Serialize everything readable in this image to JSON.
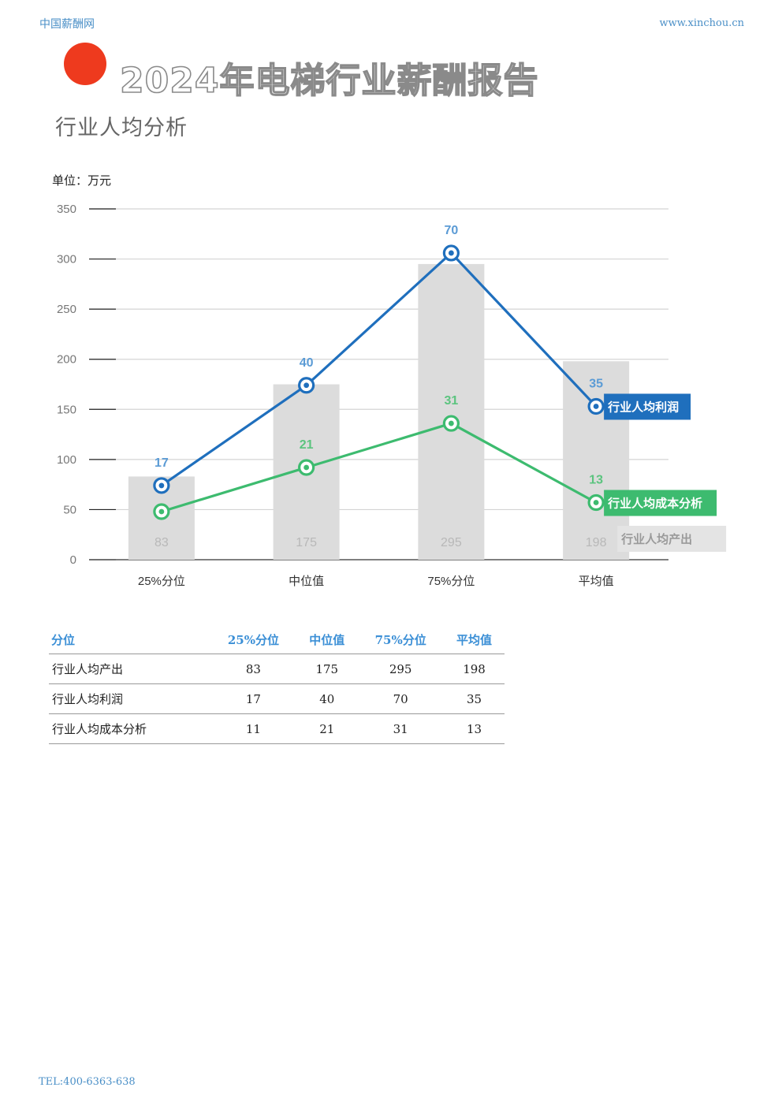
{
  "header": {
    "site_name": "中国薪酬网",
    "url": "www.xinchou.cn"
  },
  "report_title": "2024年电梯行业薪酬报告",
  "section_title": "行业人均分析",
  "unit_label": "单位：万元",
  "chart_data": {
    "type": "bar",
    "categories": [
      "25%分位",
      "中位值",
      "75%分位",
      "平均值"
    ],
    "ylim": [
      0,
      350
    ],
    "yticks": [
      0,
      50,
      100,
      150,
      200,
      250,
      300,
      350
    ],
    "grid": true,
    "legend": "right, inline labels at series ends",
    "series": [
      {
        "name": "行业人均产出",
        "type": "bar",
        "color": "#dcdcdc",
        "label_color": "#b8b8b8",
        "values": [
          83,
          175,
          295,
          198
        ],
        "labels": [
          "83",
          "175",
          "295",
          "198"
        ]
      },
      {
        "name": "行业人均利润",
        "type": "line",
        "color": "#1f6fbd",
        "label_color": "#5b9bd5",
        "values": [
          74,
          174,
          306,
          153
        ],
        "labels": [
          "17",
          "40",
          "70",
          "35"
        ]
      },
      {
        "name": "行业人均成本分析",
        "type": "line",
        "color": "#3dbb6f",
        "label_color": "#5cc47f",
        "values": [
          48,
          92,
          136,
          57
        ],
        "labels": [
          "",
          "21",
          "31",
          "13"
        ]
      }
    ]
  },
  "table": {
    "headers": [
      "分位",
      "25%分位",
      "中位值",
      "75%分位",
      "平均值"
    ],
    "rows": [
      [
        "行业人均产出",
        "83",
        "175",
        "295",
        "198"
      ],
      [
        "行业人均利润",
        "17",
        "40",
        "70",
        "35"
      ],
      [
        "行业人均成本分析",
        "11",
        "21",
        "31",
        "13"
      ]
    ]
  },
  "footer": {
    "tel": "TEL:400-6363-638"
  }
}
